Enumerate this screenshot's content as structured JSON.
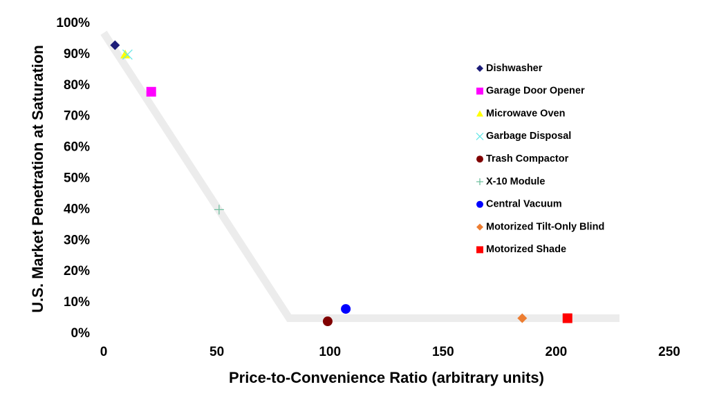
{
  "chart_data": {
    "type": "scatter",
    "xlabel": "Price-to-Convenience Ratio (arbitrary units)",
    "ylabel": "U.S. Market Penetration at Saturation",
    "xlim": [
      0,
      250
    ],
    "xticks": [
      0,
      50,
      100,
      150,
      200,
      250
    ],
    "ylim": [
      0,
      100
    ],
    "yticks": [
      {
        "value": 0,
        "label": "0%"
      },
      {
        "value": 10,
        "label": "10%"
      },
      {
        "value": 20,
        "label": "20%"
      },
      {
        "value": 30,
        "label": "30%"
      },
      {
        "value": 40,
        "label": "40%"
      },
      {
        "value": 50,
        "label": "50%"
      },
      {
        "value": 60,
        "label": "60%"
      },
      {
        "value": 70,
        "label": "70%"
      },
      {
        "value": 80,
        "label": "80%"
      },
      {
        "value": 90,
        "label": "90%"
      },
      {
        "value": 100,
        "label": "100%"
      }
    ],
    "trend_line": {
      "x": [
        0,
        82,
        228
      ],
      "y": [
        97,
        5,
        5
      ],
      "color": "#ececec"
    },
    "series": [
      {
        "name": "Dishwasher",
        "color": "#1c1c78",
        "marker": "diamond",
        "x": [
          5
        ],
        "y": [
          93
        ]
      },
      {
        "name": "Garage Door Opener",
        "color": "#ff00ff",
        "marker": "square",
        "x": [
          21
        ],
        "y": [
          78
        ]
      },
      {
        "name": "Microwave Oven",
        "color": "#ffff00",
        "marker": "triangle",
        "x": [
          9.5
        ],
        "y": [
          90
        ]
      },
      {
        "name": "Garbage Disposal",
        "color": "#66e6e6",
        "marker": "cross",
        "x": [
          10.5
        ],
        "y": [
          90
        ]
      },
      {
        "name": "Trash Compactor",
        "color": "#800000",
        "marker": "circle",
        "x": [
          99
        ],
        "y": [
          4
        ]
      },
      {
        "name": "X-10 Module",
        "color": "#6fbf9f",
        "marker": "plus",
        "x": [
          51
        ],
        "y": [
          40
        ]
      },
      {
        "name": "Central Vacuum",
        "color": "#0000ff",
        "marker": "circle",
        "x": [
          107
        ],
        "y": [
          8
        ]
      },
      {
        "name": "Motorized Tilt-Only Blind",
        "color": "#ed7d31",
        "marker": "diamond",
        "x": [
          185
        ],
        "y": [
          5
        ]
      },
      {
        "name": "Motorized Shade",
        "color": "#ff0000",
        "marker": "square",
        "x": [
          205
        ],
        "y": [
          5
        ]
      }
    ]
  }
}
